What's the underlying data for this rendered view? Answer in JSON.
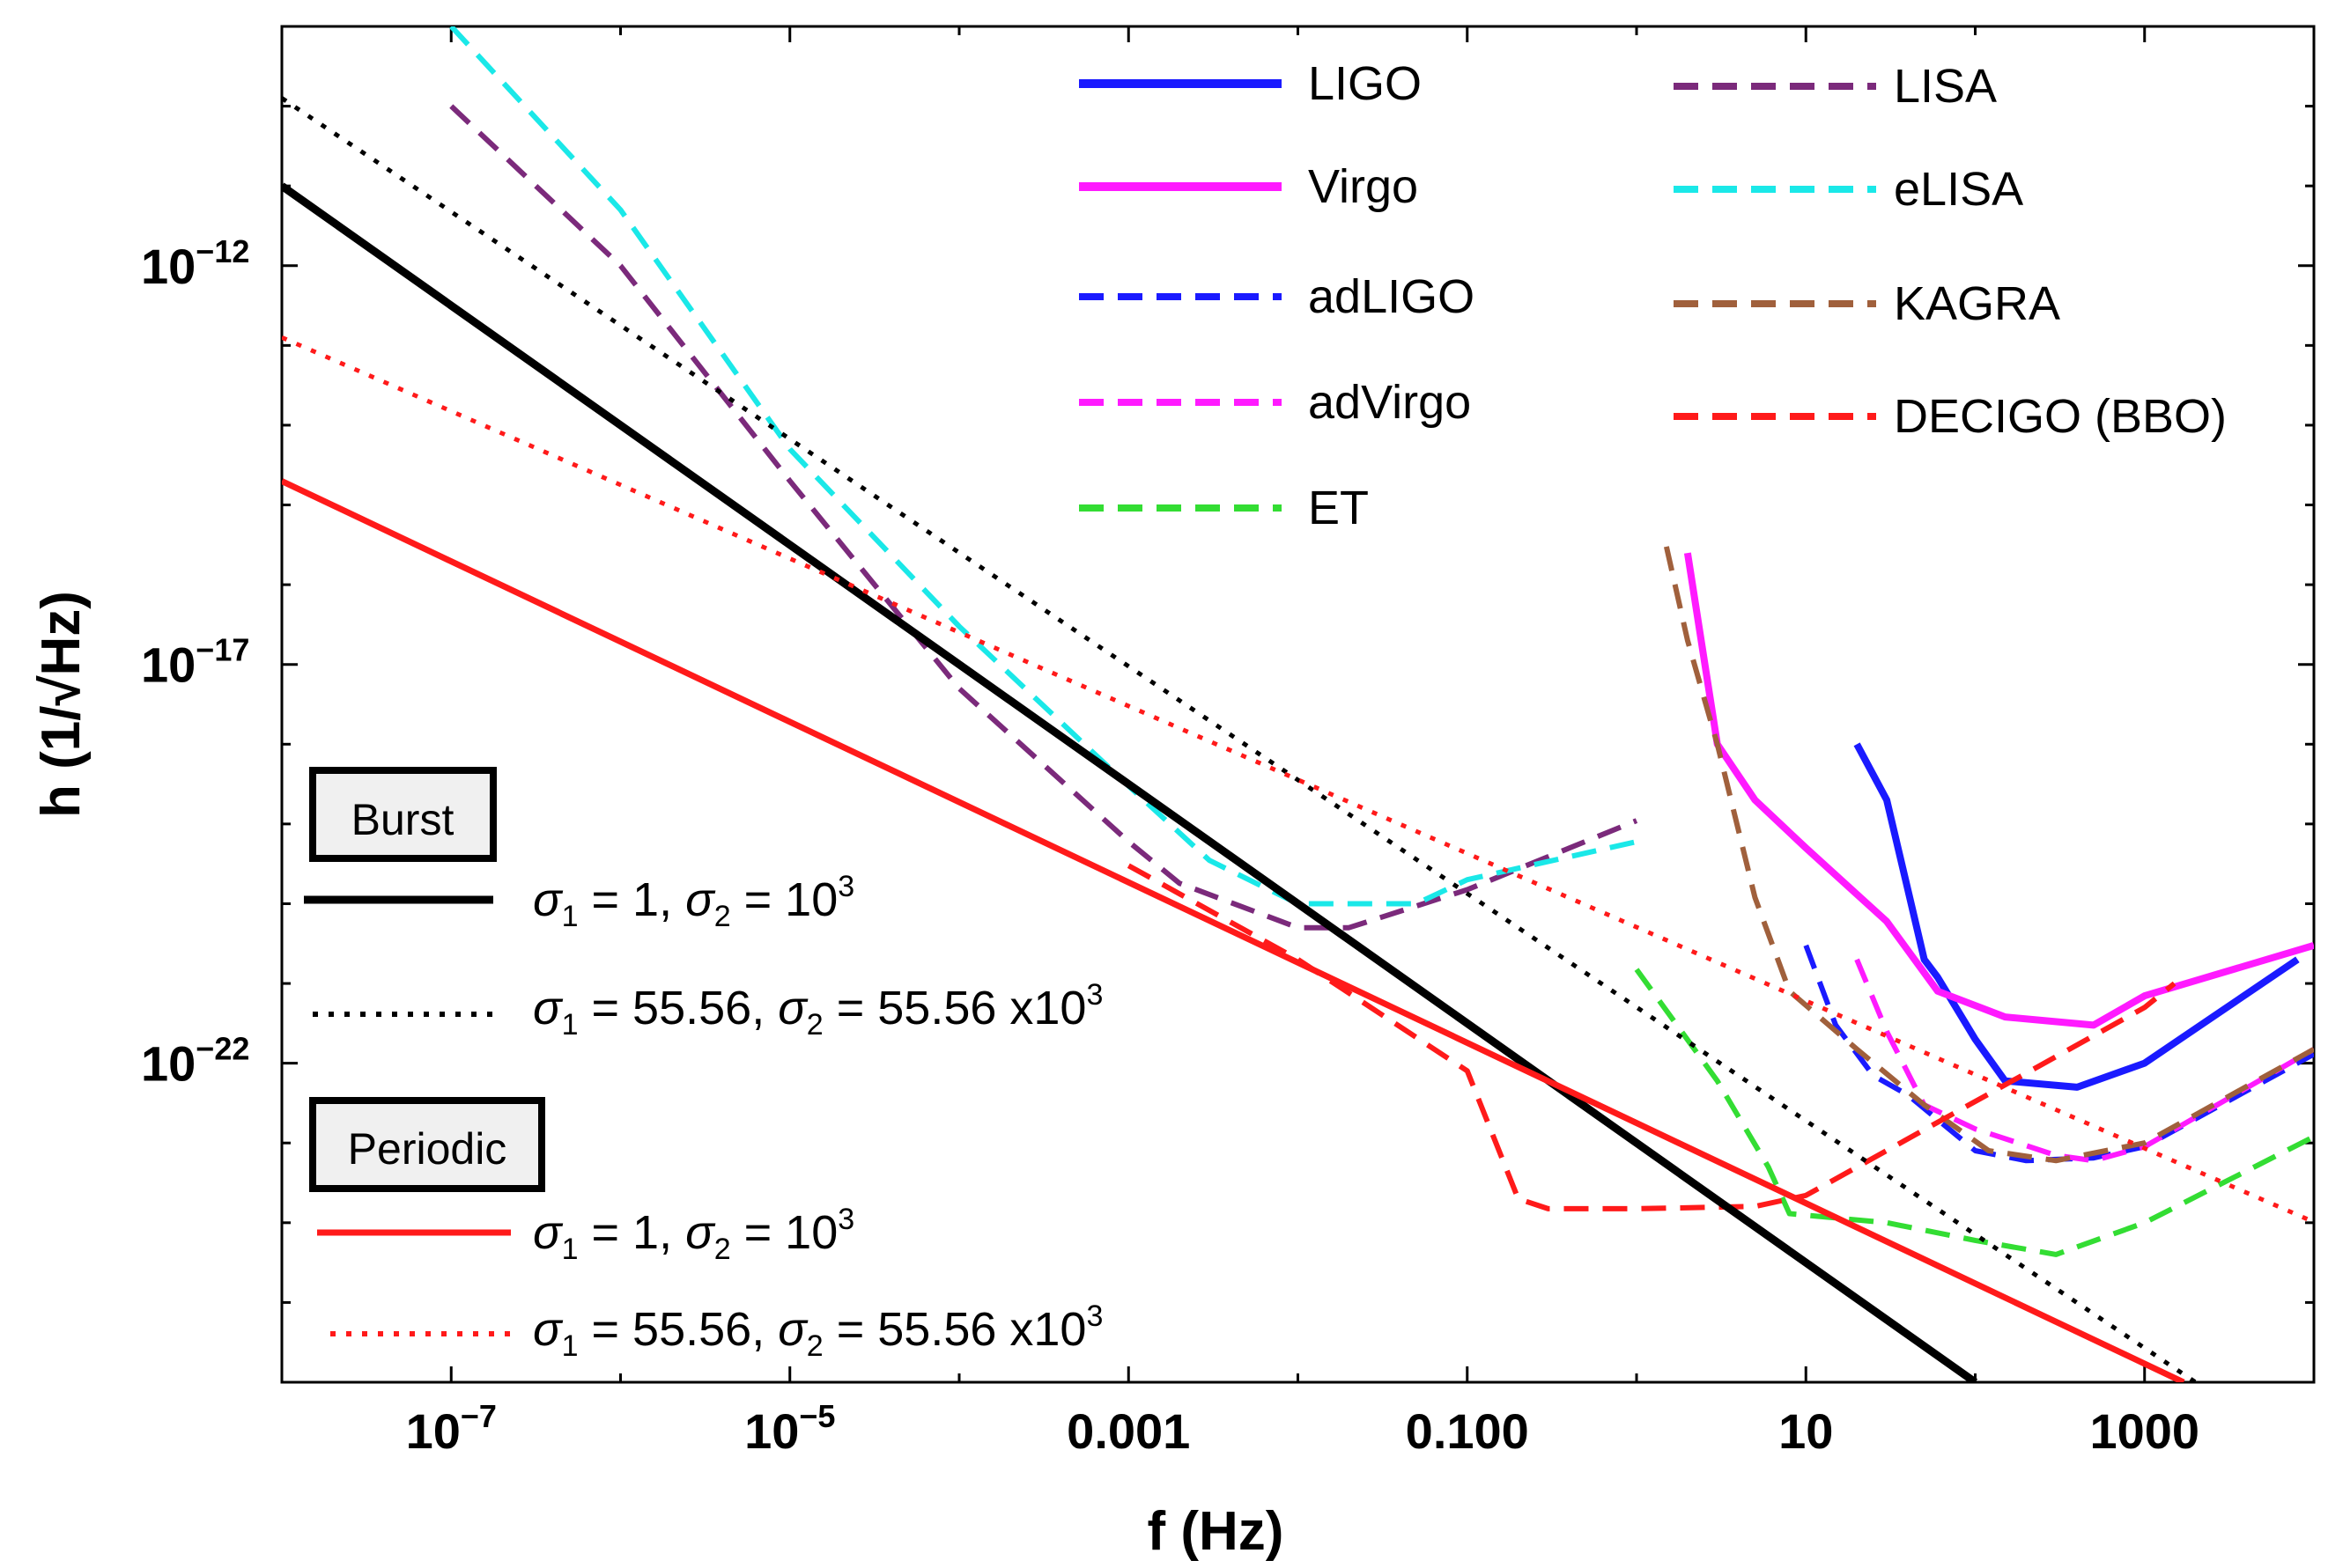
{
  "chart_data": {
    "type": "line",
    "xscale": "log",
    "yscale": "log",
    "xlabel": "f (Hz)",
    "ylabel": "h (1/√Hz)",
    "xlim": [
      1e-08,
      10000
    ],
    "ylim": [
      1e-26,
      1e-09
    ],
    "x_ticks": [
      {
        "value": 1e-07,
        "base": "10",
        "exp": "−7"
      },
      {
        "value": 1e-05,
        "base": "10",
        "exp": "−5"
      },
      {
        "value": 0.001,
        "base": "0.001",
        "exp": ""
      },
      {
        "value": 0.1,
        "base": "0.100",
        "exp": ""
      },
      {
        "value": 10,
        "base": "10",
        "exp": ""
      },
      {
        "value": 1000,
        "base": "1000",
        "exp": ""
      }
    ],
    "y_ticks": [
      {
        "value": 1e-12,
        "base": "10",
        "exp": "−12"
      },
      {
        "value": 1e-17,
        "base": "10",
        "exp": "−17"
      },
      {
        "value": 1e-22,
        "base": "10",
        "exp": "−22"
      }
    ],
    "series": [
      {
        "name": "LIGO",
        "color": "#1a1aff",
        "style": "solid",
        "width": 8,
        "points": [
          [
            20,
            1e-18
          ],
          [
            30,
            2e-19
          ],
          [
            40,
            1.5e-20
          ],
          [
            50,
            2e-21
          ],
          [
            60,
            1.2e-21
          ],
          [
            100,
            2e-22
          ],
          [
            150,
            6e-23
          ],
          [
            400,
            5e-23
          ],
          [
            1000,
            1e-22
          ],
          [
            8000,
            2e-21
          ]
        ]
      },
      {
        "name": "Virgo",
        "color": "#ff1aff",
        "style": "solid",
        "width": 8,
        "points": [
          [
            2,
            2.5e-16
          ],
          [
            3,
            1e-18
          ],
          [
            5,
            2e-19
          ],
          [
            10,
            5e-20
          ],
          [
            30,
            6e-21
          ],
          [
            60,
            8e-22
          ],
          [
            150,
            3.8e-22
          ],
          [
            500,
            3e-22
          ],
          [
            1000,
            7e-22
          ],
          [
            10000,
            3e-21
          ]
        ]
      },
      {
        "name": "adLIGO",
        "color": "#1a1aff",
        "style": "dashed",
        "width": 6,
        "points": [
          [
            10,
            3e-21
          ],
          [
            15,
            3e-22
          ],
          [
            25,
            7e-23
          ],
          [
            40,
            4e-23
          ],
          [
            100,
            8e-24
          ],
          [
            200,
            6e-24
          ],
          [
            500,
            6.5e-24
          ],
          [
            1000,
            9e-24
          ],
          [
            10000,
            1.3e-22
          ]
        ]
      },
      {
        "name": "adVirgo",
        "color": "#ff1aff",
        "style": "dashed",
        "width": 6,
        "points": [
          [
            20,
            2e-21
          ],
          [
            30,
            2.5e-22
          ],
          [
            50,
            3e-23
          ],
          [
            100,
            1.5e-23
          ],
          [
            300,
            7e-24
          ],
          [
            500,
            6e-24
          ],
          [
            1000,
            9e-24
          ],
          [
            10000,
            1.5e-22
          ]
        ]
      },
      {
        "name": "ET",
        "color": "#33dd33",
        "style": "dashed",
        "width": 6,
        "points": [
          [
            1,
            1.5e-21
          ],
          [
            3,
            6e-23
          ],
          [
            6,
            5e-24
          ],
          [
            8,
            1.3e-24
          ],
          [
            30,
            1e-24
          ],
          [
            100,
            6e-25
          ],
          [
            300,
            4e-25
          ],
          [
            1000,
            1e-24
          ],
          [
            10000,
            1.2e-23
          ]
        ]
      },
      {
        "name": "LISA",
        "color": "#7b2a7b",
        "style": "dashed",
        "width": 6,
        "points": [
          [
            1e-07,
            1e-10
          ],
          [
            1e-06,
            1e-12
          ],
          [
            1e-05,
            2e-15
          ],
          [
            0.0001,
            5e-18
          ],
          [
            0.001,
            6e-20
          ],
          [
            0.002,
            1.8e-20
          ],
          [
            0.01,
            5e-21
          ],
          [
            0.02,
            5e-21
          ],
          [
            0.1,
            1.5e-20
          ],
          [
            1,
            1.1e-19
          ]
        ]
      },
      {
        "name": "eLISA",
        "color": "#1ae8e8",
        "style": "dashed",
        "width": 6,
        "points": [
          [
            1e-07,
            1e-09
          ],
          [
            1e-06,
            5e-12
          ],
          [
            1e-05,
            5e-15
          ],
          [
            0.0001,
            3e-17
          ],
          [
            0.001,
            3e-19
          ],
          [
            0.003,
            3.5e-20
          ],
          [
            0.01,
            1e-20
          ],
          [
            0.05,
            1e-20
          ],
          [
            0.1,
            2e-20
          ],
          [
            1,
            6e-20
          ]
        ]
      },
      {
        "name": "KAGRA",
        "color": "#a0603c",
        "style": "dashed",
        "width": 6,
        "points": [
          [
            1.5,
            3e-16
          ],
          [
            2,
            2e-17
          ],
          [
            3,
            1e-18
          ],
          [
            5,
            1.2e-20
          ],
          [
            8,
            8e-22
          ],
          [
            20,
            1.5e-22
          ],
          [
            50,
            3e-23
          ],
          [
            120,
            8e-24
          ],
          [
            300,
            6e-24
          ],
          [
            1000,
            1e-23
          ],
          [
            10000,
            1.5e-22
          ]
        ]
      },
      {
        "name": "DECIGO (BBO)",
        "color": "#ff1a1a",
        "style": "dashed",
        "width": 6,
        "points": [
          [
            0.001,
            3e-20
          ],
          [
            0.01,
            2e-21
          ],
          [
            0.1,
            8e-23
          ],
          [
            0.2,
            2e-24
          ],
          [
            0.3,
            1.5e-24
          ],
          [
            1,
            1.5e-24
          ],
          [
            5,
            1.6e-24
          ],
          [
            10,
            2.2e-24
          ],
          [
            1000,
            5e-22
          ],
          [
            1500,
            1e-21
          ]
        ]
      }
    ],
    "model_lines": [
      {
        "group": "Burst",
        "label": "σ1 = 1, σ2 = 10^3",
        "color": "#000000",
        "style": "solid",
        "width": 9,
        "points": [
          [
            1e-08,
            1e-11
          ],
          [
            100,
            1e-26
          ]
        ]
      },
      {
        "group": "Burst",
        "label": "σ1 = 55.56, σ2 = 55.56x10^3",
        "color": "#000000",
        "style": "dotted",
        "width": 5,
        "points": [
          [
            1e-08,
            1.26e-10
          ],
          [
            2000,
            1e-26
          ]
        ]
      },
      {
        "group": "Periodic",
        "label": "σ1 = 1, σ2 = 10^3",
        "color": "#ff1a1a",
        "style": "solid",
        "width": 7,
        "points": [
          [
            1e-08,
            1.99e-15
          ],
          [
            1700,
            1e-26
          ]
        ]
      },
      {
        "group": "Periodic",
        "label": "σ1 = 55.56, σ2 = 55.56x10^3",
        "color": "#ff1a1a",
        "style": "dotted",
        "width": 5,
        "points": [
          [
            1e-08,
            1.26e-13
          ],
          [
            10000,
            1.02e-24
          ]
        ]
      }
    ],
    "legend_position": "top-right",
    "annotations": {
      "burst_label": "Burst",
      "periodic_label": "Periodic",
      "sigma_symbol": "σ",
      "burst_solid": {
        "s1": "1",
        "s2": "10",
        "s2_exp": "3",
        "s1_prefix": " = ",
        "s2_prefix": " = "
      },
      "burst_dotted": {
        "s1": "55.56",
        "s2": "55.56 x10",
        "s2_exp": "3"
      },
      "periodic_solid": {
        "s1": "1",
        "s2": "10",
        "s2_exp": "3"
      },
      "periodic_dotted": {
        "s1": "55.56",
        "s2": "55.56 x10",
        "s2_exp": "3"
      }
    }
  },
  "ylabel_parts": {
    "prefix": "h (1/",
    "root": "√",
    "unit": "Hz)"
  }
}
